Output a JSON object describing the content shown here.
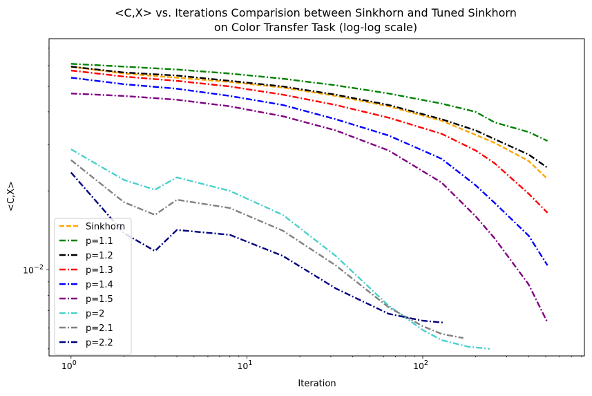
{
  "chart_data": {
    "type": "line",
    "title": "<C,X> vs. Iterations Comparision between Sinkhorn and Tuned Sinkhorn",
    "subtitle": "on Color Transfer Task (log-log scale)",
    "xlabel": "Iteration",
    "ylabel": "<C,X>",
    "xscale": "log",
    "yscale": "log",
    "xlim": [
      0.75,
      830
    ],
    "ylim": [
      0.0047,
      0.076
    ],
    "grid": false,
    "legend_position": "lower-left",
    "x_ticks": [
      {
        "value": 1,
        "base": "10",
        "exp": "0"
      },
      {
        "value": 10,
        "base": "10",
        "exp": "1"
      },
      {
        "value": 100,
        "base": "10",
        "exp": "2"
      }
    ],
    "y_ticks": [
      {
        "value": 0.01,
        "base": "10",
        "exp": "−2"
      }
    ],
    "series": [
      {
        "name": "Sinkhorn",
        "color": "#FFA500",
        "dash": "dashed",
        "x": [
          1,
          2,
          4,
          8,
          16,
          32,
          64,
          128,
          256,
          400,
          512
        ],
        "y": [
          0.0595,
          0.056,
          0.054,
          0.052,
          0.0495,
          0.046,
          0.042,
          0.037,
          0.0305,
          0.026,
          0.0222
        ]
      },
      {
        "name": "p=1.1",
        "color": "#008000",
        "dash": "dashdot",
        "x": [
          1,
          2,
          4,
          8,
          16,
          32,
          64,
          128,
          200,
          256,
          400,
          512
        ],
        "y": [
          0.061,
          0.0595,
          0.058,
          0.056,
          0.0535,
          0.0505,
          0.047,
          0.043,
          0.04,
          0.0365,
          0.0335,
          0.031
        ]
      },
      {
        "name": "p=1.2",
        "color": "#000000",
        "dash": "dashdot",
        "x": [
          1,
          2,
          4,
          8,
          16,
          32,
          64,
          128,
          200,
          256,
          400,
          512
        ],
        "y": [
          0.0595,
          0.0565,
          0.055,
          0.0525,
          0.05,
          0.0465,
          0.0425,
          0.0375,
          0.034,
          0.0315,
          0.0275,
          0.0245
        ]
      },
      {
        "name": "p=1.3",
        "color": "#FF0000",
        "dash": "dashdot",
        "x": [
          1,
          2,
          4,
          8,
          16,
          32,
          64,
          128,
          200,
          256,
          400,
          512
        ],
        "y": [
          0.0575,
          0.0545,
          0.0525,
          0.05,
          0.0465,
          0.0425,
          0.038,
          0.033,
          0.0285,
          0.0255,
          0.0195,
          0.0165
        ]
      },
      {
        "name": "p=1.4",
        "color": "#0000FF",
        "dash": "dashdot",
        "x": [
          1,
          2,
          4,
          8,
          16,
          32,
          64,
          128,
          200,
          256,
          400,
          512
        ],
        "y": [
          0.054,
          0.051,
          0.049,
          0.046,
          0.0425,
          0.0375,
          0.0325,
          0.0265,
          0.021,
          0.018,
          0.0135,
          0.0104
        ]
      },
      {
        "name": "p=1.5",
        "color": "#800080",
        "dash": "dashdot",
        "x": [
          1,
          2,
          4,
          8,
          16,
          32,
          64,
          128,
          200,
          256,
          400,
          512
        ],
        "y": [
          0.047,
          0.046,
          0.0445,
          0.042,
          0.0385,
          0.034,
          0.0285,
          0.0215,
          0.016,
          0.0132,
          0.0088,
          0.0063
        ]
      },
      {
        "name": "p=2",
        "color": "#48D1CC",
        "dash": "dashdot",
        "x": [
          1,
          2,
          3,
          4,
          8,
          16,
          32,
          64,
          100,
          128,
          180,
          240
        ],
        "y": [
          0.0288,
          0.022,
          0.0202,
          0.0225,
          0.02,
          0.0162,
          0.0113,
          0.0073,
          0.0059,
          0.0054,
          0.0051,
          0.005
        ]
      },
      {
        "name": "p=2.1",
        "color": "#808080",
        "dash": "dashdot",
        "x": [
          1,
          2,
          3,
          4,
          8,
          16,
          32,
          64,
          100,
          128,
          170
        ],
        "y": [
          0.0262,
          0.0181,
          0.0162,
          0.0185,
          0.0172,
          0.0141,
          0.0104,
          0.0072,
          0.0061,
          0.0057,
          0.0055
        ]
      },
      {
        "name": "p=2.2",
        "color": "#000080",
        "dash": "dashdot",
        "x": [
          1,
          2,
          3,
          4,
          8,
          16,
          32,
          64,
          100,
          130
        ],
        "y": [
          0.0235,
          0.0138,
          0.0118,
          0.0142,
          0.0136,
          0.0113,
          0.0085,
          0.0068,
          0.0064,
          0.0063
        ]
      }
    ]
  }
}
